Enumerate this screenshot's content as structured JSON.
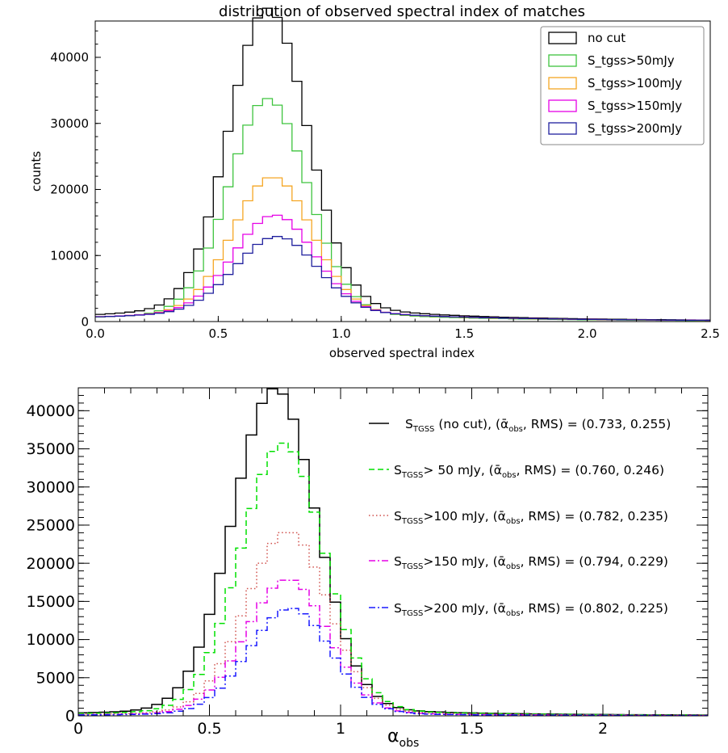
{
  "chart_data": [
    {
      "type": "histogram-step",
      "title": "distribution of observed spectral index of matches",
      "xlabel": "observed spectral index",
      "ylabel": "counts",
      "xlim": [
        0.0,
        2.5
      ],
      "ylim": [
        0,
        45500
      ],
      "xticks": [
        0.0,
        0.5,
        1.0,
        1.5,
        2.0,
        2.5
      ],
      "xtick_labels": [
        "0.0",
        "0.5",
        "1.0",
        "1.5",
        "2.0",
        "2.5"
      ],
      "yticks": [
        0,
        10000,
        20000,
        30000,
        40000
      ],
      "ytick_labels": [
        "0",
        "10000",
        "20000",
        "30000",
        "40000"
      ],
      "legend_position": "top-right",
      "grid": false,
      "bin_width": 0.04,
      "series": [
        {
          "name": "no cut",
          "color": "#000000",
          "peak_x": 0.7,
          "peak": 44500,
          "w_left": 0.155,
          "w_right": 0.16,
          "tail": 0.066,
          "tail_scale": 0.52
        },
        {
          "name": "S_tgss>50mJy",
          "color": "#3ec43e",
          "peak_x": 0.7,
          "peak": 32000,
          "w_left": 0.155,
          "w_right": 0.16,
          "tail": 0.055,
          "tail_scale": 0.55
        },
        {
          "name": "S_tgss>100mJy",
          "color": "#f5a623",
          "peak_x": 0.72,
          "peak": 20200,
          "w_left": 0.16,
          "w_right": 0.16,
          "tail": 0.085,
          "tail_scale": 0.6
        },
        {
          "name": "S_tgss>150mJy",
          "color": "#e600e6",
          "peak_x": 0.73,
          "peak": 14400,
          "w_left": 0.165,
          "w_right": 0.16,
          "tail": 0.12,
          "tail_scale": 0.62
        },
        {
          "name": "S_tgss>200mJy",
          "color": "#1f1f9e",
          "peak_x": 0.74,
          "peak": 11200,
          "w_left": 0.17,
          "w_right": 0.16,
          "tail": 0.15,
          "tail_scale": 0.62
        }
      ]
    },
    {
      "type": "histogram-step",
      "title": "",
      "xlabel": "α_obs",
      "ylabel": "",
      "xlim": [
        0.0,
        2.4
      ],
      "ylim": [
        0,
        43000
      ],
      "xticks": [
        0,
        0.5,
        1,
        1.5,
        2
      ],
      "xtick_labels": [
        "0",
        "0.5",
        "1",
        "1.5",
        "2"
      ],
      "yticks": [
        0,
        5000,
        10000,
        15000,
        20000,
        25000,
        30000,
        35000,
        40000
      ],
      "ytick_labels": [
        "0",
        "5000",
        "10000",
        "15000",
        "20000",
        "25000",
        "30000",
        "35000",
        "40000"
      ],
      "legend_position": "right",
      "grid": false,
      "bin_width": 0.04,
      "series": [
        {
          "name": "S_TGSS (no cut), (ᾱ_obs, RMS) = (0.733, 0.255)",
          "label_main": "S",
          "label_sub": "TGSS",
          "label_rest": " (no cut), (",
          "label_alpha_sub": "obs",
          "label_tail": ", RMS) = (0.733, 0.255)",
          "color": "#000000",
          "dash": "",
          "peak_x": 0.75,
          "peak": 41700,
          "w_left": 0.16,
          "w_right": 0.155,
          "tail": 0.03,
          "tail_scale": 0.5
        },
        {
          "name": "S_TGSS> 50 mJy, (ᾱ_obs, RMS) = (0.760, 0.246)",
          "label_main": "S",
          "label_sub": "TGSS",
          "label_rest": ">  50 mJy, (",
          "label_alpha_sub": "obs",
          "label_tail": ", RMS) = (0.760, 0.246)",
          "color": "#00e000",
          "dash": "7,4",
          "peak_x": 0.78,
          "peak": 34700,
          "w_left": 0.16,
          "w_right": 0.155,
          "tail": 0.03,
          "tail_scale": 0.5
        },
        {
          "name": "S_TGSS>100 mJy, (ᾱ_obs, RMS) = (0.782, 0.235)",
          "label_main": "S",
          "label_sub": "TGSS",
          "label_rest": ">100 mJy, (",
          "label_alpha_sub": "obs",
          "label_tail": ", RMS) = (0.782, 0.235)",
          "color": "#d0504c",
          "dash": "1.5,3",
          "peak_x": 0.8,
          "peak": 23500,
          "w_left": 0.16,
          "w_right": 0.15,
          "tail": 0.03,
          "tail_scale": 0.5
        },
        {
          "name": "S_TGSS>150 mJy, (ᾱ_obs, RMS) = (0.794, 0.229)",
          "label_main": "S",
          "label_sub": "TGSS",
          "label_rest": ">150 mJy, (",
          "label_alpha_sub": "obs",
          "label_tail": ", RMS) = (0.794, 0.229)",
          "color": "#e600e6",
          "dash": "8,3,2,3",
          "peak_x": 0.8,
          "peak": 17400,
          "w_left": 0.16,
          "w_right": 0.15,
          "tail": 0.03,
          "tail_scale": 0.5
        },
        {
          "name": "S_TGSS>200 mJy, (ᾱ_obs, RMS) = (0.802, 0.225)",
          "label_main": "S",
          "label_sub": "TGSS",
          "label_rest": ">200 mJy, (",
          "label_alpha_sub": "obs",
          "label_tail": ", RMS) = (0.802, 0.225)",
          "color": "#1a1aff",
          "dash": "8,3,2,3",
          "peak_x": 0.81,
          "peak": 13700,
          "w_left": 0.16,
          "w_right": 0.15,
          "tail": 0.03,
          "tail_scale": 0.5
        }
      ]
    }
  ]
}
